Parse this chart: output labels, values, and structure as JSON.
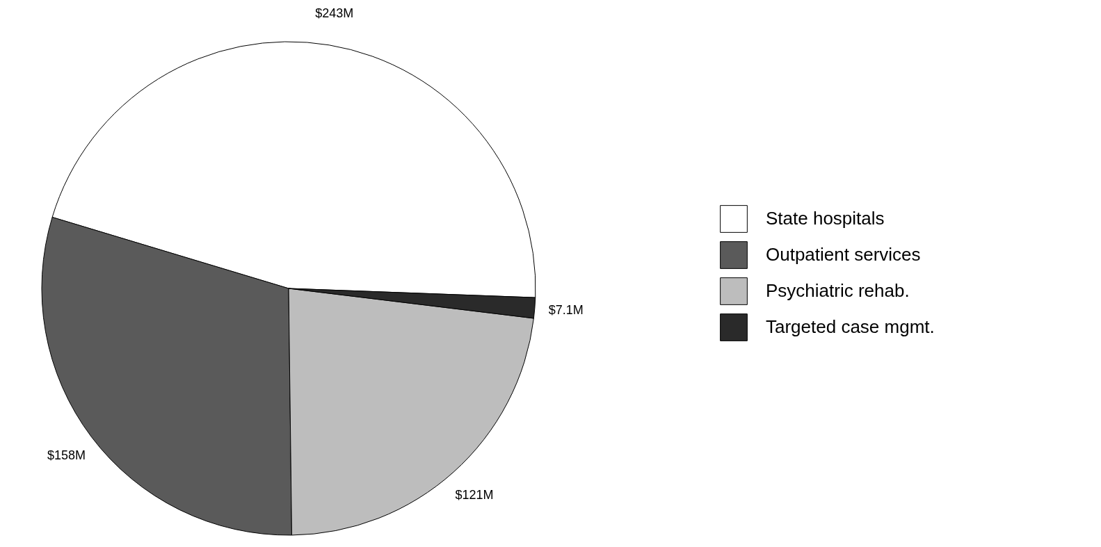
{
  "chart_data": {
    "type": "pie",
    "categories": [
      "State hospitals",
      "Outpatient services",
      "Psychiatric rehab.",
      "Targeted case mgmt."
    ],
    "values": [
      243,
      158,
      121,
      7.1
    ],
    "value_labels": [
      "$243M",
      "$158M",
      "$121M",
      "$7.1M"
    ],
    "colors": [
      "#ffffff",
      "#5a5a5a",
      "#bdbdbd",
      "#2a2a2a"
    ],
    "legend": "right"
  }
}
